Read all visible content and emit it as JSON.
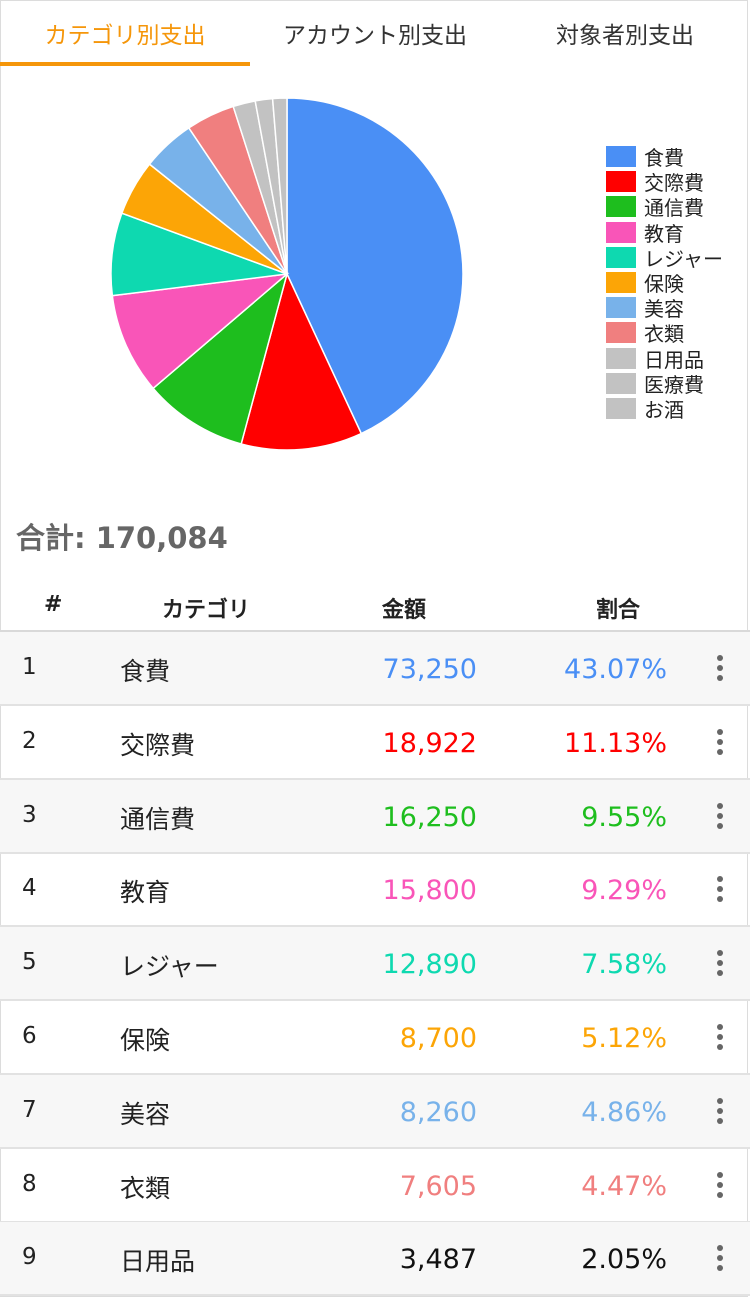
{
  "tabs": [
    {
      "label": "カテゴリ別支出",
      "active": true
    },
    {
      "label": "アカウント別支出",
      "active": false
    },
    {
      "label": "対象者別支出",
      "active": false
    }
  ],
  "accent_color": "#f5960a",
  "chart_data": {
    "type": "pie",
    "slices": [
      {
        "label": "食費",
        "value": 73250,
        "color": "#4a8ff5"
      },
      {
        "label": "交際費",
        "value": 18922,
        "color": "#ff0000"
      },
      {
        "label": "通信費",
        "value": 16250,
        "color": "#1ebe1e"
      },
      {
        "label": "教育",
        "value": 15800,
        "color": "#f955b8"
      },
      {
        "label": "レジャー",
        "value": 12890,
        "color": "#0ed9b0"
      },
      {
        "label": "保険",
        "value": 8700,
        "color": "#fca506"
      },
      {
        "label": "美容",
        "value": 8260,
        "color": "#78b2ea"
      },
      {
        "label": "衣類",
        "value": 7605,
        "color": "#f07f7f"
      },
      {
        "label": "日用品",
        "value": 3487,
        "color": "#c2c2c2"
      },
      {
        "label": "医療費",
        "value": 2700,
        "color": "#c2c2c2"
      },
      {
        "label": "お酒",
        "value": 2220,
        "color": "#c2c2c2"
      }
    ],
    "legend_position": "right"
  },
  "total_label": "合計: 170,084",
  "table": {
    "headers": {
      "num": "#",
      "category": "カテゴリ",
      "amount": "金額",
      "ratio": "割合"
    },
    "rows": [
      {
        "num": "1",
        "category": "食費",
        "amount": "73,250",
        "ratio": "43.07%",
        "color": "#4a8ff5"
      },
      {
        "num": "2",
        "category": "交際費",
        "amount": "18,922",
        "ratio": "11.13%",
        "color": "#ff0000"
      },
      {
        "num": "3",
        "category": "通信費",
        "amount": "16,250",
        "ratio": "9.55%",
        "color": "#1ebe1e"
      },
      {
        "num": "4",
        "category": "教育",
        "amount": "15,800",
        "ratio": "9.29%",
        "color": "#f955b8"
      },
      {
        "num": "5",
        "category": "レジャー",
        "amount": "12,890",
        "ratio": "7.58%",
        "color": "#0ed9b0"
      },
      {
        "num": "6",
        "category": "保険",
        "amount": "8,700",
        "ratio": "5.12%",
        "color": "#fca506"
      },
      {
        "num": "7",
        "category": "美容",
        "amount": "8,260",
        "ratio": "4.86%",
        "color": "#78b2ea"
      },
      {
        "num": "8",
        "category": "衣類",
        "amount": "7,605",
        "ratio": "4.47%",
        "color": "#f07f7f"
      },
      {
        "num": "9",
        "category": "日用品",
        "amount": "3,487",
        "ratio": "2.05%",
        "color": "#111111"
      }
    ]
  }
}
